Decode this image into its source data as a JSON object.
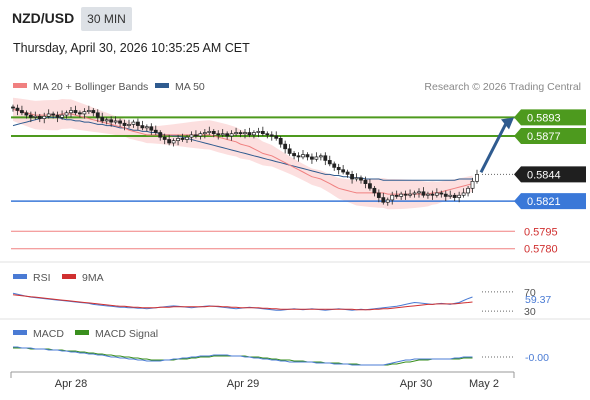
{
  "header": {
    "pair": "NZD/USD",
    "timeframe": "30 MIN",
    "datetime": "Thursday, April 30, 2026 10:35:25 AM CET"
  },
  "colors": {
    "ma20": "#f08080",
    "ma50": "#2f5b8f",
    "bollinger_band": "#fbd9d9",
    "resistance": "#4d9a1e",
    "pivot": "#3a78d8",
    "support": "#f08080",
    "target_arrow": "#2f5b8f",
    "rsi": "#4a7bd4",
    "rsi_9ma": "#d03030",
    "macd": "#4a7bd4",
    "macd_signal": "#3a8f1e",
    "last_price_label": "#1f1f1f"
  },
  "chart_data": [
    {
      "type": "candlestick",
      "legend": [
        "MA 20 + Bollinger Bands",
        "MA 50"
      ],
      "legend_position": "top-left",
      "source": "Research © 2026 Trading Central",
      "x_tick_labels": [
        "Apr 28",
        "Apr 29",
        "Apr 30",
        "May 2"
      ],
      "ylim": [
        0.5772,
        0.5908
      ],
      "levels": [
        {
          "value": 0.5893,
          "label": "0.5893",
          "kind": "resistance"
        },
        {
          "value": 0.5877,
          "label": "0.5877",
          "kind": "resistance"
        },
        {
          "value": 0.5844,
          "label": "0.5844",
          "kind": "last_price"
        },
        {
          "value": 0.5821,
          "label": "0.5821",
          "kind": "pivot"
        },
        {
          "value": 0.5795,
          "label": "0.5795",
          "kind": "support"
        },
        {
          "value": 0.578,
          "label": "0.5780",
          "kind": "support"
        }
      ],
      "target_arrow": {
        "from": 0.5844,
        "to": 0.5893
      },
      "close": [
        0.5901,
        0.5899,
        0.5897,
        0.5895,
        0.5893,
        0.5894,
        0.5892,
        0.5894,
        0.5896,
        0.5895,
        0.5893,
        0.5895,
        0.5897,
        0.5899,
        0.5897,
        0.5896,
        0.5898,
        0.5899,
        0.5897,
        0.5893,
        0.589,
        0.5891,
        0.5889,
        0.589,
        0.5888,
        0.5886,
        0.5887,
        0.5889,
        0.5886,
        0.5884,
        0.5885,
        0.5882,
        0.588,
        0.5876,
        0.5874,
        0.5871,
        0.5873,
        0.5875,
        0.5874,
        0.5876,
        0.5878,
        0.5877,
        0.5879,
        0.588,
        0.5881,
        0.5879,
        0.5878,
        0.5879,
        0.5877,
        0.5879,
        0.588,
        0.5879,
        0.588,
        0.5878,
        0.588,
        0.5881,
        0.5879,
        0.5878,
        0.5877,
        0.5875,
        0.587,
        0.5866,
        0.5862,
        0.586,
        0.5859,
        0.5861,
        0.5859,
        0.5857,
        0.5859,
        0.586,
        0.5856,
        0.5853,
        0.585,
        0.5848,
        0.5846,
        0.5844,
        0.584,
        0.5841,
        0.5839,
        0.5836,
        0.5832,
        0.5828,
        0.5824,
        0.582,
        0.5822,
        0.5826,
        0.5825,
        0.5827,
        0.5826,
        0.5827,
        0.5828,
        0.5829,
        0.5826,
        0.5827,
        0.5826,
        0.5828,
        0.5827,
        0.5825,
        0.5826,
        0.5824,
        0.5826,
        0.5828,
        0.5832,
        0.5838,
        0.5844
      ],
      "ma20": [
        0.59,
        0.5899,
        0.5898,
        0.5897,
        0.5896,
        0.5895,
        0.5895,
        0.5895,
        0.5895,
        0.5895,
        0.5895,
        0.5896,
        0.5896,
        0.5896,
        0.5895,
        0.5894,
        0.5893,
        0.5892,
        0.5891,
        0.589,
        0.5889,
        0.5888,
        0.5887,
        0.5886,
        0.5885,
        0.5884,
        0.5882,
        0.5881,
        0.588,
        0.5879,
        0.5878,
        0.5878,
        0.5878,
        0.5878,
        0.5878,
        0.5878,
        0.5878,
        0.5878,
        0.5878,
        0.5878,
        0.5878,
        0.5878,
        0.5878,
        0.5878,
        0.5878,
        0.5877,
        0.5876,
        0.5875,
        0.5874,
        0.5873,
        0.5872,
        0.587,
        0.5869,
        0.5868,
        0.5866,
        0.5864,
        0.5862,
        0.5861,
        0.586,
        0.5858,
        0.5856,
        0.5854,
        0.5852,
        0.585,
        0.5848,
        0.5846,
        0.5844,
        0.5842,
        0.5841,
        0.584,
        0.5838,
        0.5836,
        0.5834,
        0.5832,
        0.5831,
        0.583,
        0.5829,
        0.5828,
        0.5828,
        0.5828,
        0.5828,
        0.5828,
        0.5828,
        0.5828,
        0.5827,
        0.5827,
        0.5827,
        0.5827,
        0.5827,
        0.5827,
        0.5827,
        0.5827,
        0.5827,
        0.5827,
        0.5828,
        0.5828,
        0.5829,
        0.583,
        0.5831,
        0.5832,
        0.5833,
        0.5834,
        0.5835,
        0.5836
      ],
      "ma50": [
        0.5886,
        0.5887,
        0.5888,
        0.5889,
        0.589,
        0.5891,
        0.5892,
        0.5893,
        0.5893,
        0.5893,
        0.5893,
        0.5892,
        0.5891,
        0.5891,
        0.589,
        0.589,
        0.5889,
        0.5889,
        0.5888,
        0.5887,
        0.5887,
        0.5886,
        0.5886,
        0.5885,
        0.5884,
        0.5884,
        0.5883,
        0.5882,
        0.5882,
        0.5881,
        0.5881,
        0.588,
        0.588,
        0.5879,
        0.5878,
        0.5878,
        0.5877,
        0.5877,
        0.5876,
        0.5875,
        0.5874,
        0.5873,
        0.5872,
        0.5871,
        0.587,
        0.5869,
        0.5868,
        0.5867,
        0.5866,
        0.5865,
        0.5864,
        0.5863,
        0.5862,
        0.5861,
        0.586,
        0.5859,
        0.5858,
        0.5857,
        0.5856,
        0.5855,
        0.5854,
        0.5853,
        0.5852,
        0.5851,
        0.585,
        0.5849,
        0.5848,
        0.5847,
        0.5846,
        0.5845,
        0.5844,
        0.5844,
        0.5843,
        0.5843,
        0.5842,
        0.5842,
        0.5841,
        0.5841,
        0.5841,
        0.584,
        0.584,
        0.584,
        0.584,
        0.5839,
        0.5839,
        0.5839,
        0.5839,
        0.5839,
        0.5839,
        0.5839,
        0.5839,
        0.5839,
        0.5839,
        0.5839,
        0.5839,
        0.5839,
        0.5839,
        0.5839,
        0.5839,
        0.5839,
        0.584,
        0.584,
        0.584,
        0.584
      ]
    },
    {
      "type": "line",
      "legend": [
        "RSI",
        "9MA"
      ],
      "ylim": [
        20,
        80
      ],
      "tick_labels": [
        "70",
        "30"
      ],
      "last_value_label": "59.37",
      "rsi": [
        67,
        65,
        63,
        61,
        59,
        58,
        57,
        56,
        55,
        54,
        53,
        52,
        51,
        50,
        49,
        48,
        47,
        46,
        44,
        43,
        42,
        41,
        40,
        39,
        38,
        38,
        37,
        37,
        36,
        36,
        35,
        36,
        37,
        38,
        39,
        40,
        41,
        40,
        39,
        38,
        37,
        38,
        39,
        40,
        41,
        40,
        39,
        38,
        37,
        36,
        35,
        36,
        37,
        38,
        37,
        36,
        35,
        34,
        33,
        32,
        32,
        33,
        34,
        35,
        34,
        33,
        34,
        35,
        34,
        33,
        32,
        33,
        34,
        35,
        34,
        33,
        32,
        33,
        34,
        33,
        34,
        35,
        36,
        37,
        38,
        39,
        40,
        42,
        44,
        46,
        48,
        47,
        46,
        45,
        44,
        45,
        46,
        45,
        44,
        46,
        48,
        52,
        56,
        59.37
      ],
      "ma9": [
        64,
        63,
        62,
        61,
        60,
        59,
        58,
        57,
        56,
        55,
        54,
        53,
        52,
        51,
        50,
        49,
        48,
        47,
        46,
        45,
        44,
        43,
        42,
        41,
        40,
        40,
        39,
        38,
        38,
        37,
        37,
        37,
        37,
        38,
        38,
        38,
        39,
        39,
        39,
        39,
        39,
        39,
        39,
        39,
        40,
        40,
        40,
        39,
        39,
        38,
        38,
        37,
        37,
        37,
        37,
        37,
        36,
        36,
        35,
        35,
        34,
        34,
        34,
        34,
        34,
        34,
        34,
        34,
        34,
        34,
        34,
        34,
        34,
        34,
        34,
        34,
        34,
        33,
        33,
        33,
        33,
        34,
        34,
        35,
        35,
        36,
        37,
        38,
        39,
        40,
        41,
        42,
        43,
        44,
        44,
        45,
        45,
        45,
        45,
        45,
        46,
        47,
        48,
        49
      ]
    },
    {
      "type": "line",
      "legend": [
        "MACD",
        "MACD Signal"
      ],
      "ylim": [
        -0.0012,
        0.0012
      ],
      "last_value_label": "-0.00",
      "macd": [
        0.001,
        0.001,
        0.0009,
        0.0009,
        0.0009,
        0.0008,
        0.0008,
        0.0008,
        0.0007,
        0.0007,
        0.0007,
        0.0006,
        0.0006,
        0.0005,
        0.0005,
        0.0004,
        0.0004,
        0.0003,
        0.0003,
        0.0002,
        0.0002,
        0.0001,
        0.0,
        0.0,
        -0.0001,
        -0.0001,
        -0.0002,
        -0.0002,
        -0.0003,
        -0.0003,
        -0.0004,
        -0.0004,
        -0.0004,
        -0.0004,
        -0.0003,
        -0.0003,
        -0.0002,
        -0.0002,
        -0.0001,
        -0.0001,
        0.0,
        0.0,
        0.0001,
        0.0001,
        0.0001,
        0.0002,
        0.0002,
        0.0002,
        0.0002,
        0.0001,
        0.0001,
        0.0001,
        0.0,
        0.0,
        -0.0001,
        -0.0001,
        -0.0002,
        -0.0002,
        -0.0003,
        -0.0003,
        -0.0004,
        -0.0004,
        -0.0005,
        -0.0005,
        -0.0005,
        -0.0005,
        -0.0005,
        -0.0005,
        -0.0006,
        -0.0006,
        -0.0006,
        -0.0006,
        -0.0007,
        -0.0007,
        -0.0007,
        -0.0007,
        -0.0008,
        -0.0008,
        -0.0008,
        -0.0008,
        -0.0008,
        -0.0008,
        -0.0008,
        -0.0008,
        -0.0007,
        -0.0006,
        -0.0005,
        -0.0004,
        -0.0003,
        -0.0003,
        -0.0002,
        -0.0002,
        -0.0002,
        -0.0002,
        -0.0002,
        -0.0002,
        -0.0002,
        -0.0002,
        -0.0002,
        -0.0001,
        -0.0001,
        0.0,
        0.0,
        0.0
      ],
      "signal": [
        0.0009,
        0.0009,
        0.0009,
        0.0009,
        0.0008,
        0.0008,
        0.0008,
        0.0008,
        0.0008,
        0.0007,
        0.0007,
        0.0007,
        0.0006,
        0.0006,
        0.0006,
        0.0005,
        0.0005,
        0.0004,
        0.0004,
        0.0003,
        0.0003,
        0.0002,
        0.0002,
        0.0001,
        0.0001,
        0.0,
        0.0,
        -0.0001,
        -0.0001,
        -0.0002,
        -0.0002,
        -0.0003,
        -0.0003,
        -0.0003,
        -0.0003,
        -0.0003,
        -0.0003,
        -0.0002,
        -0.0002,
        -0.0002,
        -0.0001,
        -0.0001,
        0.0,
        0.0,
        0.0,
        0.0001,
        0.0001,
        0.0001,
        0.0001,
        0.0001,
        0.0001,
        0.0001,
        0.0001,
        0.0,
        0.0,
        0.0,
        -0.0001,
        -0.0001,
        -0.0002,
        -0.0002,
        -0.0003,
        -0.0003,
        -0.0003,
        -0.0004,
        -0.0004,
        -0.0004,
        -0.0005,
        -0.0005,
        -0.0005,
        -0.0005,
        -0.0006,
        -0.0006,
        -0.0006,
        -0.0006,
        -0.0007,
        -0.0007,
        -0.0007,
        -0.0007,
        -0.0008,
        -0.0008,
        -0.0008,
        -0.0008,
        -0.0008,
        -0.0008,
        -0.0008,
        -0.0007,
        -0.0007,
        -0.0006,
        -0.0005,
        -0.0005,
        -0.0004,
        -0.0003,
        -0.0003,
        -0.0003,
        -0.0002,
        -0.0002,
        -0.0002,
        -0.0002,
        -0.0002,
        -0.0002,
        -0.0002,
        -0.0001,
        -0.0001,
        -0.0001
      ]
    }
  ]
}
